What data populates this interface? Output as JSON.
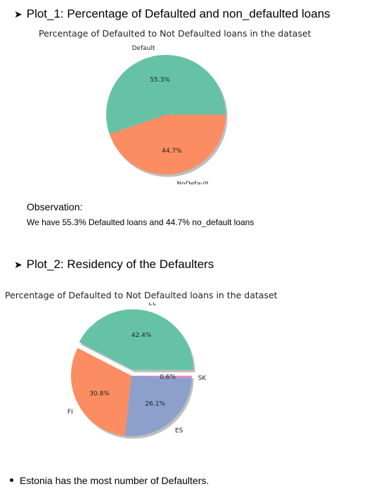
{
  "sections": [
    {
      "heading": "Plot_1: Percentage of Defaulted and non_defaulted loans",
      "observation_label": "Observation:",
      "observation_text": "We have 55.3% Defaulted loans and 44.7% no_default loans"
    },
    {
      "heading": "Plot_2: Residency of the Defaulters",
      "bullet": "Estonia has the most number of Defaulters."
    }
  ],
  "chart_data": [
    {
      "type": "pie",
      "title": "Percentage of Defaulted to Not Defaulted loans in the dataset",
      "labels": [
        "Default",
        "NoDefault"
      ],
      "values": [
        55.3,
        44.7
      ],
      "pct_labels": [
        "55.3%",
        "44.7%"
      ],
      "colors": [
        "#66c2a5",
        "#fc8d62"
      ],
      "shadow": true,
      "explode": [
        0,
        0
      ]
    },
    {
      "type": "pie",
      "title": "Percentage of Defaulted to Not Defaulted loans in the dataset",
      "labels": [
        "EE",
        "FI",
        "ES",
        "SK"
      ],
      "values": [
        42.4,
        30.8,
        26.1,
        0.6
      ],
      "pct_labels": [
        "42.4%",
        "30.8%",
        "26.1%",
        "0.6%"
      ],
      "colors": [
        "#66c2a5",
        "#fc8d62",
        "#8da0cb",
        "#e78ac3"
      ],
      "shadow": true,
      "explode": [
        0.1,
        0,
        0,
        0
      ]
    }
  ]
}
